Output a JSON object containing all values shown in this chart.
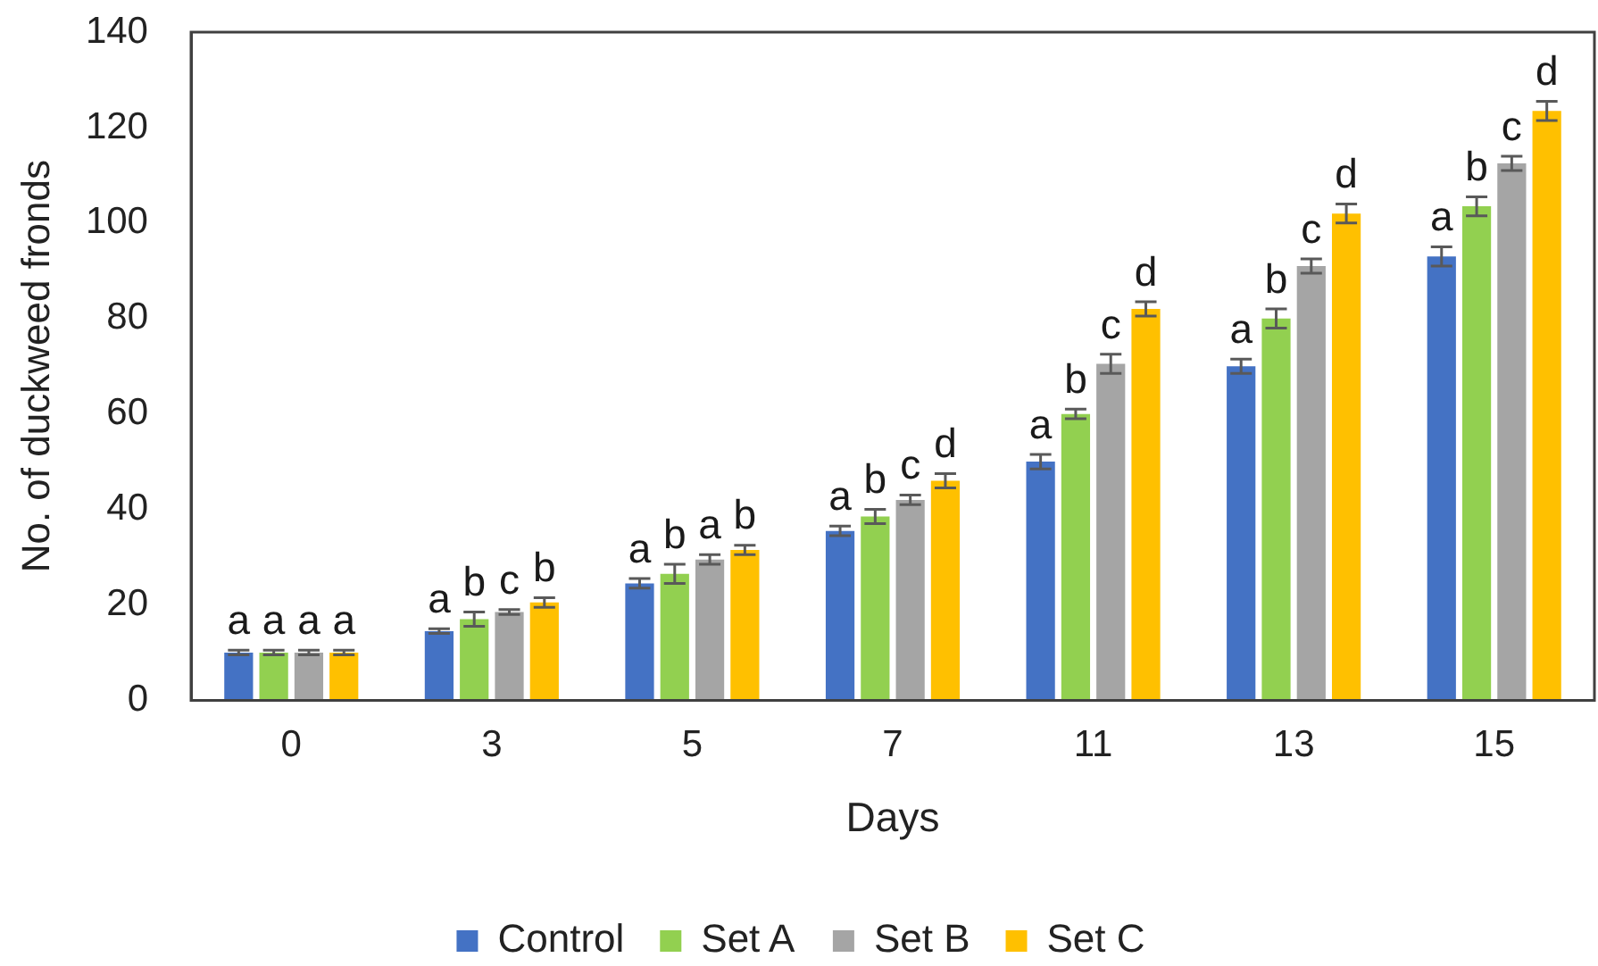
{
  "chart_data": {
    "type": "bar",
    "xlabel": "Days",
    "ylabel": "No. of duckweed fronds",
    "categories": [
      "0",
      "3",
      "5",
      "7",
      "11",
      "13",
      "15"
    ],
    "series": [
      {
        "name": "Control",
        "color": "#4472c4",
        "values": [
          10,
          14.5,
          24.5,
          35.5,
          50,
          70,
          93
        ],
        "errors": [
          0.5,
          0.5,
          1,
          1,
          1.5,
          1.5,
          2
        ],
        "value_labels": [
          "a",
          "a",
          "a",
          "a",
          "a",
          "a",
          "a"
        ]
      },
      {
        "name": "Set A",
        "color": "#92d050",
        "values": [
          10,
          17,
          26.5,
          38.5,
          60,
          80,
          103.5
        ],
        "errors": [
          0.5,
          1.5,
          2,
          1.5,
          1,
          2,
          2
        ],
        "value_labels": [
          "a",
          "b",
          "b",
          "b",
          "b",
          "b",
          "b"
        ]
      },
      {
        "name": "Set B",
        "color": "#a5a5a5",
        "values": [
          10,
          18.5,
          29.5,
          42,
          70.5,
          91,
          112.5
        ],
        "errors": [
          0.5,
          0.5,
          1,
          1,
          2,
          1.5,
          1.5
        ],
        "value_labels": [
          "a",
          "c",
          "a",
          "c",
          "c",
          "c",
          "c"
        ]
      },
      {
        "name": "Set C",
        "color": "#ffc000",
        "values": [
          10,
          20.5,
          31.5,
          46,
          82,
          102,
          123.5
        ],
        "errors": [
          0.5,
          1,
          1,
          1.5,
          1.5,
          2,
          2
        ],
        "value_labels": [
          "a",
          "b",
          "b",
          "d",
          "d",
          "d",
          "d"
        ]
      }
    ],
    "ylim": [
      0,
      140
    ],
    "yticks": [
      0,
      20,
      40,
      60,
      80,
      100,
      120,
      140
    ],
    "grid": false,
    "legend": "bottom"
  }
}
